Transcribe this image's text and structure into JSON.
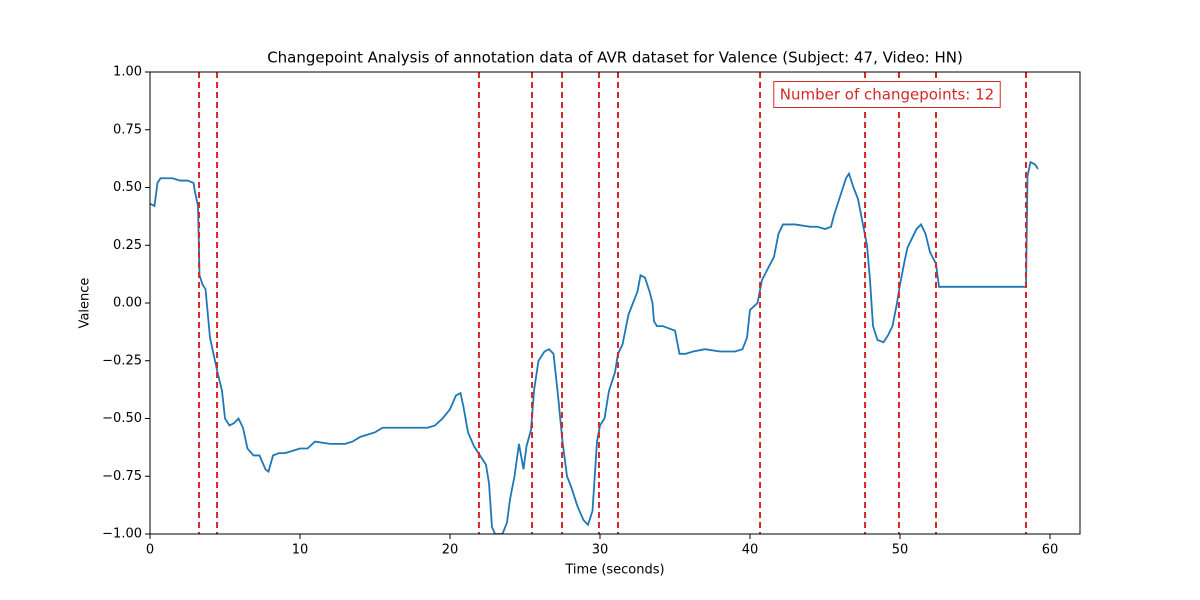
{
  "chart_data": {
    "type": "line",
    "title": "Changepoint Analysis of annotation data of AVR dataset for Valence (Subject: 47, Video: HN)",
    "xlabel": "Time (seconds)",
    "ylabel": "Valence",
    "annotation": "Number of changepoints: 12",
    "color": "#1f77b4",
    "changepoint_color": "#d62728",
    "xlim": [
      0,
      62
    ],
    "ylim": [
      -1,
      1
    ],
    "xticks": [
      0,
      10,
      20,
      30,
      40,
      50,
      60
    ],
    "yticks": [
      {
        "value": -1,
        "label": "−1.00"
      },
      {
        "value": -0.75,
        "label": "−0.75"
      },
      {
        "value": -0.5,
        "label": "−0.50"
      },
      {
        "value": -0.25,
        "label": "−0.25"
      },
      {
        "value": 0,
        "label": "0.00"
      },
      {
        "value": 0.25,
        "label": "0.25"
      },
      {
        "value": 0.5,
        "label": "0.50"
      },
      {
        "value": 0.75,
        "label": "0.75"
      },
      {
        "value": 1,
        "label": "1.00"
      }
    ],
    "changepoints": [
      3.27,
      4.47,
      21.93,
      25.47,
      27.47,
      29.93,
      31.2,
      40.67,
      47.67,
      49.93,
      52.4,
      58.4
    ],
    "x": [
      0,
      0.3,
      0.5,
      0.7,
      1.5,
      2,
      2.5,
      2.9,
      3.0,
      3.2,
      3.3,
      3.5,
      3.7,
      4.0,
      4.5,
      4.8,
      5.0,
      5.3,
      5.6,
      5.9,
      6.2,
      6.5,
      6.9,
      7.3,
      7.7,
      7.9,
      8.2,
      8.6,
      9.0,
      9.5,
      10,
      10.5,
      11,
      12,
      13,
      13.5,
      14,
      15,
      15.5,
      16,
      17,
      18,
      18.5,
      19,
      19.5,
      20,
      20.4,
      20.7,
      20.9,
      21.2,
      21.6,
      22,
      22.4,
      22.6,
      22.8,
      23.0,
      23.5,
      23.8,
      24.0,
      24.3,
      24.6,
      24.9,
      25.1,
      25.4,
      25.6,
      25.9,
      26.3,
      26.6,
      26.9,
      27.2,
      27.5,
      27.8,
      28.1,
      28.5,
      28.9,
      29.2,
      29.5,
      29.8,
      30.0,
      30.3,
      30.6,
      31.0,
      31.2,
      31.5,
      31.9,
      32.2,
      32.5,
      32.7,
      33.0,
      33.3,
      33.5,
      33.6,
      33.8,
      34.2,
      34.6,
      35.0,
      35.3,
      35.7,
      36.2,
      37,
      38,
      39,
      39.5,
      39.8,
      40,
      40.5,
      40.8,
      41.2,
      41.6,
      41.9,
      42.2,
      43,
      44,
      44.5,
      45,
      45.4,
      45.6,
      46,
      46.4,
      46.6,
      46.9,
      47.2,
      47.5,
      47.8,
      48.0,
      48.2,
      48.5,
      48.9,
      49.2,
      49.5,
      49.8,
      50.0,
      50.3,
      50.5,
      50.8,
      51.1,
      51.4,
      51.7,
      52.0,
      52.4,
      52.6,
      55,
      58.4,
      58.5,
      58.7,
      59.0,
      59.2
    ],
    "values": [
      0.43,
      0.42,
      0.52,
      0.54,
      0.54,
      0.53,
      0.53,
      0.52,
      0.48,
      0.42,
      0.12,
      0.08,
      0.06,
      -0.15,
      -0.3,
      -0.38,
      -0.5,
      -0.53,
      -0.52,
      -0.5,
      -0.54,
      -0.63,
      -0.66,
      -0.66,
      -0.72,
      -0.73,
      -0.66,
      -0.65,
      -0.65,
      -0.64,
      -0.63,
      -0.63,
      -0.6,
      -0.61,
      -0.61,
      -0.6,
      -0.58,
      -0.56,
      -0.54,
      -0.54,
      -0.54,
      -0.54,
      -0.54,
      -0.53,
      -0.5,
      -0.46,
      -0.4,
      -0.39,
      -0.45,
      -0.56,
      -0.62,
      -0.66,
      -0.7,
      -0.78,
      -0.97,
      -1.0,
      -1.0,
      -0.95,
      -0.85,
      -0.75,
      -0.61,
      -0.72,
      -0.62,
      -0.55,
      -0.38,
      -0.25,
      -0.21,
      -0.2,
      -0.22,
      -0.4,
      -0.6,
      -0.75,
      -0.8,
      -0.88,
      -0.94,
      -0.96,
      -0.9,
      -0.6,
      -0.53,
      -0.5,
      -0.38,
      -0.3,
      -0.22,
      -0.18,
      -0.05,
      0.0,
      0.05,
      0.12,
      0.11,
      0.05,
      0.0,
      -0.08,
      -0.1,
      -0.1,
      -0.11,
      -0.12,
      -0.22,
      -0.22,
      -0.21,
      -0.2,
      -0.21,
      -0.21,
      -0.2,
      -0.15,
      -0.03,
      0.0,
      0.1,
      0.15,
      0.2,
      0.3,
      0.34,
      0.34,
      0.33,
      0.33,
      0.32,
      0.33,
      0.38,
      0.46,
      0.54,
      0.56,
      0.5,
      0.45,
      0.35,
      0.25,
      0.1,
      -0.1,
      -0.16,
      -0.17,
      -0.14,
      -0.1,
      0.0,
      0.08,
      0.18,
      0.24,
      0.28,
      0.32,
      0.34,
      0.3,
      0.22,
      0.17,
      0.07,
      0.07,
      0.07,
      0.55,
      0.61,
      0.6,
      0.58
    ]
  }
}
